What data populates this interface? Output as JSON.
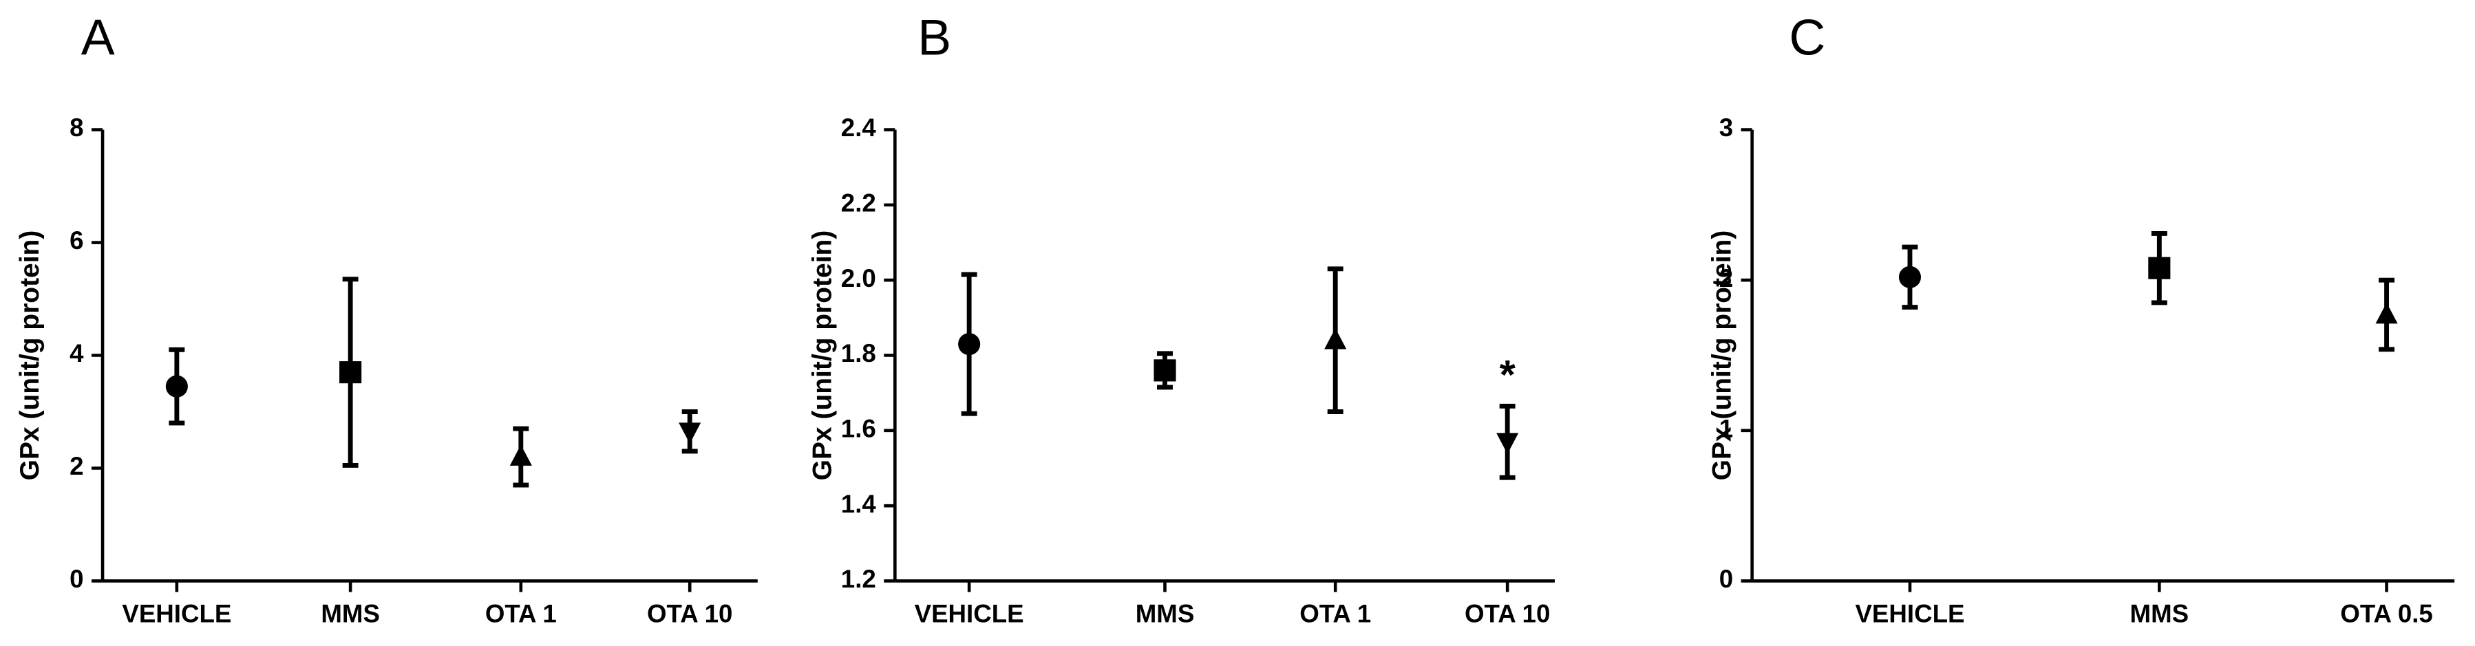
{
  "chart_data": [
    {
      "type": "errorbar",
      "panel": "A",
      "ylabel": "GPx (unit/g protein)",
      "categories": [
        "VEHICLE",
        "MMS",
        "OTA 1",
        "OTA 10"
      ],
      "values": [
        3.45,
        3.7,
        2.2,
        2.65
      ],
      "errors": [
        0.65,
        1.65,
        0.5,
        0.35
      ],
      "markers": [
        "circle",
        "square",
        "triangle-up",
        "triangle-down"
      ],
      "color": "#000000",
      "ylim": [
        0,
        8
      ],
      "yticks": [
        0,
        2,
        4,
        6,
        8
      ]
    },
    {
      "type": "errorbar",
      "panel": "B",
      "ylabel": "GPx (unit/g protein)",
      "categories": [
        "VEHICLE",
        "MMS",
        "OTA 1",
        "OTA 10"
      ],
      "values": [
        1.83,
        1.76,
        1.84,
        1.57
      ],
      "errors": [
        0.185,
        0.045,
        0.19,
        0.095
      ],
      "value_labels": [
        null,
        null,
        null,
        "*"
      ],
      "markers": [
        "circle",
        "square",
        "triangle-up",
        "triangle-down"
      ],
      "color": "#000000",
      "ylim": [
        1.2,
        2.4
      ],
      "yticks": [
        1.2,
        1.4,
        1.6,
        1.8,
        {
          "value": 2.0,
          "label": "2.0"
        },
        2.2,
        2.4
      ]
    },
    {
      "type": "errorbar",
      "panel": "C",
      "ylabel": "GPx (unit/g protein)",
      "categories": [
        "VEHICLE",
        "MMS",
        "OTA 0.5"
      ],
      "values": [
        2.02,
        2.08,
        1.77
      ],
      "errors": [
        0.2,
        0.23,
        0.23
      ],
      "markers": [
        "circle",
        "square",
        "triangle-up"
      ],
      "color": "#000000",
      "ylim": [
        0,
        3
      ],
      "yticks": [
        0,
        1,
        2,
        3
      ]
    }
  ]
}
